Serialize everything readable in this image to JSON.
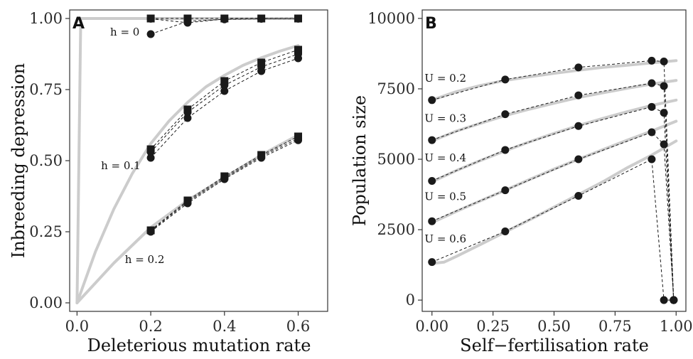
{
  "colors": {
    "theory_curve": "#cccccc",
    "points": "#1a1a1a",
    "axis": "#333333"
  },
  "chart_data": [
    {
      "panel": "A",
      "type": "line",
      "xlabel": "Deleterious mutation rate",
      "ylabel": "Inbreeding depression",
      "xlim": [
        -0.02,
        0.68
      ],
      "ylim": [
        -0.03,
        1.03
      ],
      "xticks": [
        0.0,
        0.2,
        0.4,
        0.6
      ],
      "xtick_labels": [
        "0.0",
        "0.2",
        "0.4",
        "0.6"
      ],
      "yticks": [
        0.0,
        0.25,
        0.5,
        0.75,
        1.0
      ],
      "ytick_labels": [
        "0.00",
        "0.25",
        "0.50",
        "0.75",
        "1.00"
      ],
      "grid": false,
      "theory_curves": [
        {
          "h": 0,
          "x": [
            0.0,
            0.01,
            0.6
          ],
          "y": [
            0.0,
            1.0,
            1.0
          ]
        },
        {
          "h": 0.1,
          "x": [
            0.0,
            0.05,
            0.1,
            0.15,
            0.2,
            0.25,
            0.3,
            0.35,
            0.4,
            0.45,
            0.5,
            0.55,
            0.6
          ],
          "y": [
            0.0,
            0.18,
            0.33,
            0.455,
            0.56,
            0.64,
            0.705,
            0.76,
            0.8,
            0.835,
            0.862,
            0.885,
            0.905
          ]
        },
        {
          "h": 0.2,
          "x": [
            0.0,
            0.1,
            0.2,
            0.3,
            0.4,
            0.5,
            0.6
          ],
          "y": [
            0.0,
            0.14,
            0.265,
            0.36,
            0.44,
            0.52,
            0.59
          ]
        }
      ],
      "series": [
        {
          "h": 0,
          "marker": "square",
          "x": [
            0.2,
            0.3,
            0.4,
            0.5,
            0.6
          ],
          "y": [
            1.0,
            1.0,
            1.0,
            1.0,
            1.0
          ]
        },
        {
          "h": 0,
          "marker": "circle",
          "x": [
            0.2,
            0.3,
            0.4,
            0.5,
            0.6
          ],
          "y": [
            0.945,
            0.99,
            0.997,
            0.999,
            0.999
          ]
        },
        {
          "h": 0,
          "marker": "circle",
          "x": [
            0.2,
            0.3,
            0.4,
            0.5,
            0.6
          ],
          "y": [
            0.999,
            0.985,
            0.998,
            0.999,
            1.0
          ]
        },
        {
          "h": 0.1,
          "marker": "square",
          "x": [
            0.2,
            0.3,
            0.4,
            0.5,
            0.6
          ],
          "y": [
            0.54,
            0.68,
            0.78,
            0.845,
            0.89
          ]
        },
        {
          "h": 0.1,
          "marker": "circle",
          "x": [
            0.2,
            0.3,
            0.4,
            0.5,
            0.6
          ],
          "y": [
            0.53,
            0.67,
            0.765,
            0.83,
            0.875
          ]
        },
        {
          "h": 0.1,
          "marker": "circle",
          "x": [
            0.2,
            0.3,
            0.4,
            0.5,
            0.6
          ],
          "y": [
            0.51,
            0.65,
            0.745,
            0.815,
            0.86
          ]
        },
        {
          "h": 0.2,
          "marker": "square",
          "x": [
            0.2,
            0.3,
            0.4,
            0.5,
            0.6
          ],
          "y": [
            0.255,
            0.36,
            0.445,
            0.52,
            0.585
          ]
        },
        {
          "h": 0.2,
          "marker": "circle",
          "x": [
            0.2,
            0.3,
            0.4,
            0.5,
            0.6
          ],
          "y": [
            0.253,
            0.355,
            0.44,
            0.515,
            0.578
          ]
        },
        {
          "h": 0.2,
          "marker": "circle",
          "x": [
            0.2,
            0.3,
            0.4,
            0.5,
            0.6
          ],
          "y": [
            0.25,
            0.35,
            0.435,
            0.51,
            0.572
          ]
        }
      ],
      "annotations": [
        {
          "text": "h = 0",
          "x": 0.09,
          "y": 0.94
        },
        {
          "text": "h = 0.1",
          "x": 0.065,
          "y": 0.47
        },
        {
          "text": "h = 0.2",
          "x": 0.13,
          "y": 0.14
        }
      ]
    },
    {
      "panel": "B",
      "type": "line",
      "xlabel": "Self−fertilisation rate",
      "ylabel": "Population size",
      "xlim": [
        -0.04,
        1.04
      ],
      "ylim": [
        -400,
        10300
      ],
      "xticks": [
        0.0,
        0.25,
        0.5,
        0.75,
        1.0
      ],
      "xtick_labels": [
        "0.00",
        "0.25",
        "0.50",
        "0.75",
        "1.00"
      ],
      "yticks": [
        0,
        2500,
        5000,
        7500,
        10000
      ],
      "ytick_labels": [
        "0",
        "2500",
        "5000",
        "7500",
        "10000"
      ],
      "grid": false,
      "theory_curves": [
        {
          "U": 0.2,
          "x": [
            0.0,
            0.1,
            0.2,
            0.3,
            0.4,
            0.5,
            0.6,
            0.7,
            0.8,
            0.9,
            1.0
          ],
          "y": [
            7100,
            7400,
            7620,
            7800,
            7930,
            8050,
            8160,
            8260,
            8340,
            8420,
            8500
          ]
        },
        {
          "U": 0.3,
          "x": [
            0.0,
            0.1,
            0.2,
            0.3,
            0.4,
            0.5,
            0.6,
            0.7,
            0.8,
            0.9,
            1.0
          ],
          "y": [
            5650,
            6000,
            6280,
            6550,
            6780,
            6990,
            7190,
            7360,
            7520,
            7670,
            7800
          ]
        },
        {
          "U": 0.4,
          "x": [
            0.0,
            0.1,
            0.2,
            0.3,
            0.4,
            0.5,
            0.6,
            0.7,
            0.8,
            0.9,
            1.0
          ],
          "y": [
            4200,
            4600,
            4960,
            5300,
            5620,
            5920,
            6200,
            6450,
            6690,
            6910,
            7100
          ]
        },
        {
          "U": 0.5,
          "x": [
            0.0,
            0.1,
            0.2,
            0.3,
            0.4,
            0.5,
            0.6,
            0.7,
            0.8,
            0.9,
            1.0
          ],
          "y": [
            2750,
            3150,
            3530,
            3900,
            4280,
            4650,
            5000,
            5340,
            5680,
            6000,
            6350
          ]
        },
        {
          "U": 0.6,
          "x": [
            0.0,
            0.05,
            0.1,
            0.2,
            0.3,
            0.4,
            0.5,
            0.6,
            0.7,
            0.8,
            0.9,
            1.0
          ],
          "y": [
            1300,
            1350,
            1550,
            1980,
            2420,
            2850,
            3300,
            3750,
            4200,
            4700,
            5150,
            5650
          ]
        }
      ],
      "series": [
        {
          "U": 0.2,
          "marker": "circle",
          "x": [
            0.0,
            0.3,
            0.6,
            0.9,
            0.95,
            0.99
          ],
          "y": [
            7100,
            7830,
            8260,
            8500,
            8470,
            0
          ]
        },
        {
          "U": 0.3,
          "marker": "circle",
          "x": [
            0.0,
            0.3,
            0.6,
            0.9,
            0.95,
            0.99
          ],
          "y": [
            5680,
            6600,
            7270,
            7700,
            7600,
            0
          ]
        },
        {
          "U": 0.4,
          "marker": "circle",
          "x": [
            0.0,
            0.3,
            0.6,
            0.9,
            0.95,
            0.99
          ],
          "y": [
            4230,
            5330,
            6180,
            6860,
            6650,
            0
          ]
        },
        {
          "U": 0.5,
          "marker": "circle",
          "x": [
            0.0,
            0.3,
            0.6,
            0.9,
            0.95,
            0.99
          ],
          "y": [
            2800,
            3900,
            5000,
            5960,
            5530,
            0
          ]
        },
        {
          "U": 0.6,
          "marker": "circle",
          "x": [
            0.0,
            0.3,
            0.6,
            0.9,
            0.95,
            0.99
          ],
          "y": [
            1350,
            2440,
            3700,
            5000,
            0,
            0
          ]
        }
      ],
      "annotations": [
        {
          "text": "U = 0.2",
          "x": -0.03,
          "y": 7750
        },
        {
          "text": "U = 0.3",
          "x": -0.03,
          "y": 6330
        },
        {
          "text": "U = 0.4",
          "x": -0.03,
          "y": 4930
        },
        {
          "text": "U = 0.5",
          "x": -0.03,
          "y": 3550
        },
        {
          "text": "U = 0.6",
          "x": -0.03,
          "y": 2050
        }
      ]
    }
  ]
}
